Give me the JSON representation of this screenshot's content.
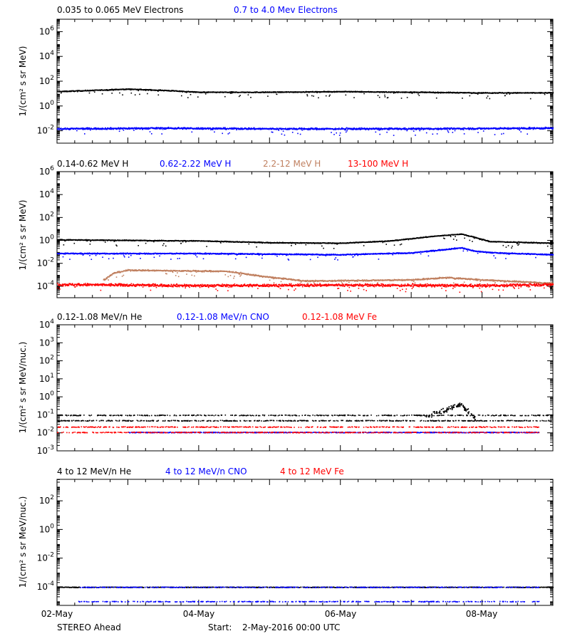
{
  "colors": {
    "black": "#000000",
    "blue": "#0000ff",
    "brown": "#c08060",
    "red": "#ff0000"
  },
  "x_ticks": [
    "02-May",
    "04-May",
    "06-May",
    "08-May"
  ],
  "footer": {
    "spacecraft": "STEREO Ahead",
    "start_label": "Start:",
    "start_value": "2-May-2016 00:00 UTC"
  },
  "chart_data": [
    {
      "type": "scatter",
      "panel": 1,
      "ylabel": "1/(cm² s sr MeV)",
      "yscale": "log",
      "ylim_exp": [
        -3,
        7
      ],
      "ytick_exps": [
        -2,
        0,
        2,
        4,
        6
      ],
      "xlim_days": [
        0,
        7
      ],
      "legend": [
        {
          "text": "0.035 to 0.065 MeV Electrons",
          "color": "#000000"
        },
        {
          "text": "0.7 to 4.0 Mev Electrons",
          "color": "#0000ff"
        }
      ],
      "series": [
        {
          "color": "#000000",
          "noise": 0.06,
          "profile": [
            [
              0,
              1.2
            ],
            [
              0.5,
              1.3
            ],
            [
              1.0,
              1.4
            ],
            [
              1.5,
              1.3
            ],
            [
              2.0,
              1.15
            ],
            [
              3.0,
              1.15
            ],
            [
              4.0,
              1.2
            ],
            [
              5.0,
              1.15
            ],
            [
              6.0,
              1.1
            ],
            [
              7.0,
              1.1
            ]
          ]
        },
        {
          "color": "#0000ff",
          "noise": 0.12,
          "profile": [
            [
              0,
              -1.8
            ],
            [
              1.5,
              -1.75
            ],
            [
              3.0,
              -1.8
            ],
            [
              5.0,
              -1.8
            ],
            [
              7.0,
              -1.75
            ]
          ]
        }
      ]
    },
    {
      "type": "scatter",
      "panel": 2,
      "ylabel": "1/(cm² s sr MeV)",
      "yscale": "log",
      "ylim_exp": [
        -5,
        6
      ],
      "ytick_exps": [
        -4,
        -2,
        0,
        2,
        4,
        6
      ],
      "xlim_days": [
        0,
        7
      ],
      "legend": [
        {
          "text": "0.14-0.62 MeV H",
          "color": "#000000"
        },
        {
          "text": "0.62-2.22 MeV H",
          "color": "#0000ff"
        },
        {
          "text": "2.2-12 MeV H",
          "color": "#c08060"
        },
        {
          "text": "13-100 MeV H",
          "color": "#ff0000"
        }
      ],
      "series": [
        {
          "color": "#000000",
          "noise": 0.06,
          "profile": [
            [
              0,
              0.1
            ],
            [
              1.0,
              0.05
            ],
            [
              2.0,
              0.0
            ],
            [
              3.0,
              -0.15
            ],
            [
              4.0,
              -0.2
            ],
            [
              4.7,
              0.0
            ],
            [
              5.3,
              0.4
            ],
            [
              5.7,
              0.6
            ],
            [
              5.9,
              0.3
            ],
            [
              6.1,
              -0.05
            ],
            [
              7.0,
              -0.2
            ]
          ]
        },
        {
          "color": "#0000ff",
          "noise": 0.08,
          "profile": [
            [
              0,
              -1.1
            ],
            [
              2.0,
              -1.1
            ],
            [
              4.0,
              -1.2
            ],
            [
              5.0,
              -1.05
            ],
            [
              5.7,
              -0.6
            ],
            [
              5.9,
              -0.9
            ],
            [
              6.2,
              -1.05
            ],
            [
              7.0,
              -1.2
            ]
          ]
        },
        {
          "color": "#c08060",
          "noise": 0.1,
          "profile": [
            [
              0.65,
              -3.4
            ],
            [
              0.8,
              -2.8
            ],
            [
              1.0,
              -2.55
            ],
            [
              1.6,
              -2.6
            ],
            [
              2.4,
              -2.65
            ],
            [
              2.9,
              -3.1
            ],
            [
              3.5,
              -3.5
            ],
            [
              5.0,
              -3.4
            ],
            [
              5.5,
              -3.2
            ],
            [
              6.0,
              -3.4
            ],
            [
              7.0,
              -3.7
            ]
          ]
        },
        {
          "color": "#ff0000",
          "noise": 0.2,
          "profile": [
            [
              0,
              -3.8
            ],
            [
              2.0,
              -3.9
            ],
            [
              4.0,
              -3.85
            ],
            [
              6.0,
              -3.9
            ],
            [
              7.0,
              -3.8
            ]
          ]
        }
      ]
    },
    {
      "type": "scatter",
      "panel": 3,
      "ylabel": "1/(cm² s sr MeV/nuc.)",
      "yscale": "log",
      "ylim_exp": [
        -3,
        4
      ],
      "ytick_exps": [
        -3,
        -2,
        -1,
        0,
        1,
        2,
        3,
        4
      ],
      "xlim_days": [
        0,
        7
      ],
      "legend": [
        {
          "text": "0.12-1.08 MeV/n He",
          "color": "#000000"
        },
        {
          "text": "0.12-1.08 MeV/n CNO",
          "color": "#0000ff"
        },
        {
          "text": "0.12-1.08 MeV Fe",
          "color": "#ff0000"
        }
      ],
      "series": [
        {
          "color": "#000000",
          "noise": 0.0,
          "levels": [
            -1.3,
            -1.0
          ],
          "profile": [
            [
              0,
              -1.3
            ],
            [
              7.0,
              -1.3
            ]
          ],
          "event": [
            [
              5.2,
              -1.1
            ],
            [
              5.7,
              -0.4
            ],
            [
              5.9,
              -1.2
            ]
          ]
        },
        {
          "color": "#0000ff",
          "noise": 0.0,
          "levels": [
            -1.95
          ],
          "profile": [
            [
              1.0,
              -1.95
            ],
            [
              6.8,
              -1.95
            ]
          ]
        },
        {
          "color": "#ff0000",
          "noise": 0.0,
          "levels": [
            -1.95,
            -1.65
          ],
          "profile": [
            [
              0,
              -1.95
            ],
            [
              6.8,
              -1.95
            ]
          ]
        }
      ]
    },
    {
      "type": "scatter",
      "panel": 4,
      "ylabel": "1/(cm² s sr MeV/nuc.)",
      "yscale": "log",
      "ylim_exp": [
        -5.3,
        3.5
      ],
      "ytick_exps": [
        -4,
        -2,
        0,
        2
      ],
      "xlim_days": [
        0,
        7
      ],
      "legend": [
        {
          "text": "4 to 12 MeV/n He",
          "color": "#000000"
        },
        {
          "text": "4 to 12 MeV/n CNO",
          "color": "#0000ff"
        },
        {
          "text": "4 to 12 MeV Fe",
          "color": "#ff0000"
        }
      ],
      "series": [
        {
          "color": "#000000",
          "noise": 0.0,
          "levels": [
            -4.0
          ],
          "profile": [
            [
              0,
              -4.0
            ],
            [
              7.0,
              -4.0
            ]
          ]
        },
        {
          "color": "#0000ff",
          "noise": 0.0,
          "levels": [
            -4.0,
            -5.0
          ],
          "profile": [
            [
              0.3,
              -4.0
            ],
            [
              6.8,
              -4.0
            ]
          ]
        }
      ]
    }
  ]
}
